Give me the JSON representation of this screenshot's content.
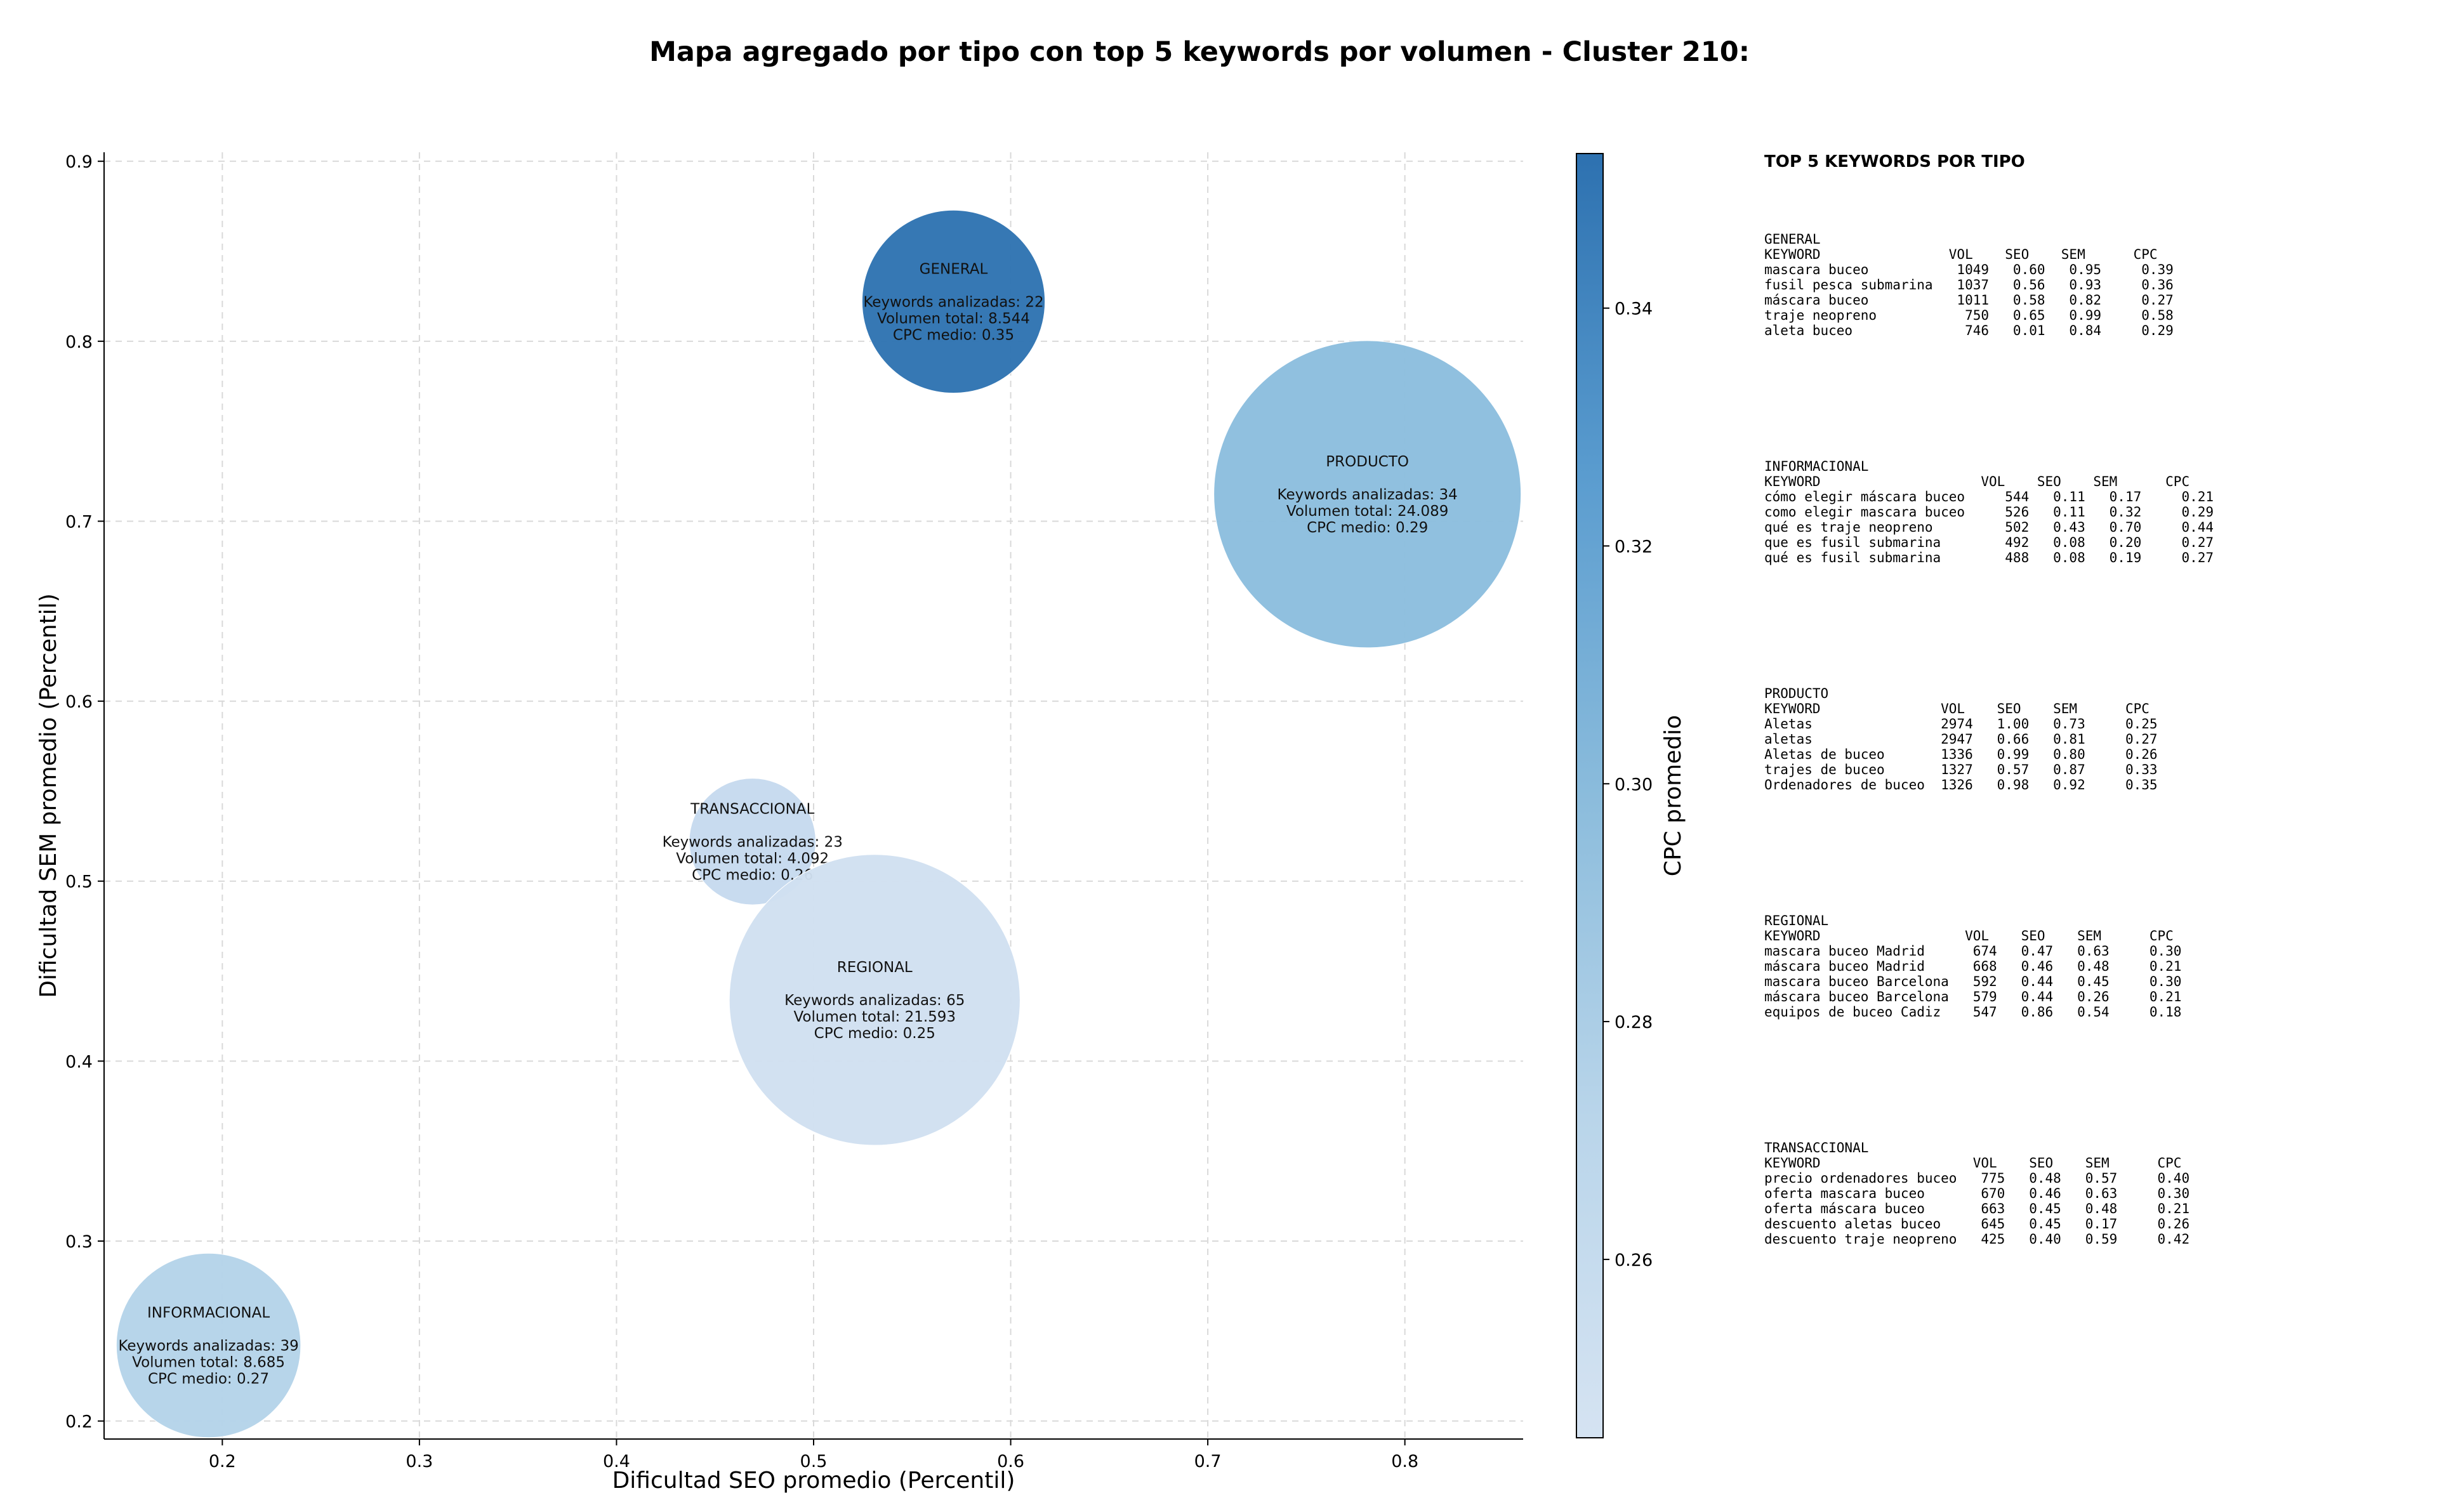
{
  "chart_data": {
    "type": "scatter",
    "subtype": "bubble",
    "title": "Mapa agregado por tipo con top 5 keywords por volumen - Cluster 210:",
    "xlabel": "Dificultad SEO promedio (Percentil)",
    "ylabel": "Dificultad SEM promedio (Percentil)",
    "xlim": [
      0.14,
      0.86
    ],
    "ylim": [
      0.19,
      0.905
    ],
    "xticks": [
      "0.2",
      "0.3",
      "0.4",
      "0.5",
      "0.6",
      "0.7",
      "0.8"
    ],
    "yticks": [
      "0.2",
      "0.3",
      "0.4",
      "0.5",
      "0.6",
      "0.7",
      "0.8",
      "0.9"
    ],
    "grid": true,
    "colorbar": {
      "label": "CPC promedio",
      "range": [
        0.245,
        0.353
      ],
      "ticks": [
        "0.26",
        "0.28",
        "0.30",
        "0.32",
        "0.34"
      ],
      "colormap": [
        "#d5e3f2",
        "#b9d5ea",
        "#8bbcdc",
        "#5a9ccf",
        "#2d71b0"
      ]
    },
    "bubbles": [
      {
        "tipo": "GENERAL",
        "x": 0.571,
        "y": 0.822,
        "size": 8544,
        "cpc": 0.35,
        "color": "#2e72b1",
        "lines": [
          "GENERAL",
          "",
          "Keywords analizadas: 22",
          "Volumen total: 8.544",
          "CPC medio: 0.35"
        ]
      },
      {
        "tipo": "PRODUCTO",
        "x": 0.781,
        "y": 0.715,
        "size": 24089,
        "cpc": 0.29,
        "color": "#8bbdde",
        "lines": [
          "PRODUCTO",
          "",
          "Keywords analizadas: 34",
          "Volumen total: 24.089",
          "CPC medio: 0.29"
        ]
      },
      {
        "tipo": "TRANSACCIONAL",
        "x": 0.469,
        "y": 0.522,
        "size": 4092,
        "cpc": 0.26,
        "color": "#c6daee",
        "lines": [
          "TRANSACCIONAL",
          "",
          "Keywords analizadas: 23",
          "Volumen total: 4.092",
          "CPC medio: 0.26"
        ]
      },
      {
        "tipo": "REGIONAL",
        "x": 0.531,
        "y": 0.434,
        "size": 21593,
        "cpc": 0.25,
        "color": "#d0e0f0",
        "lines": [
          "REGIONAL",
          "",
          "Keywords analizadas: 65",
          "Volumen total: 21.593",
          "CPC medio: 0.25"
        ]
      },
      {
        "tipo": "INFORMACIONAL",
        "x": 0.193,
        "y": 0.242,
        "size": 8685,
        "cpc": 0.27,
        "color": "#b4d3e9",
        "lines": [
          "INFORMACIONAL",
          "",
          "Keywords analizadas: 39",
          "Volumen total: 8.685",
          "CPC medio: 0.27"
        ]
      }
    ]
  },
  "keywords_panel": {
    "heading": "TOP 5 KEYWORDS POR TIPO",
    "blocks": [
      {
        "tipo": "GENERAL",
        "text": "GENERAL\nKEYWORD                VOL    SEO    SEM      CPC\nmascara buceo           1049   0.60   0.95     0.39\nfusil pesca submarina   1037   0.56   0.93     0.36\nmáscara buceo           1011   0.58   0.82     0.27\ntraje neopreno           750   0.65   0.99     0.58\naleta buceo              746   0.01   0.84     0.29"
      },
      {
        "tipo": "INFORMACIONAL",
        "text": "INFORMACIONAL\nKEYWORD                    VOL    SEO    SEM      CPC\ncómo elegir máscara buceo     544   0.11   0.17     0.21\ncomo elegir mascara buceo     526   0.11   0.32     0.29\nqué es traje neopreno         502   0.43   0.70     0.44\nque es fusil submarina        492   0.08   0.20     0.27\nqué es fusil submarina        488   0.08   0.19     0.27"
      },
      {
        "tipo": "PRODUCTO",
        "text": "PRODUCTO\nKEYWORD               VOL    SEO    SEM      CPC\nAletas                2974   1.00   0.73     0.25\naletas                2947   0.66   0.81     0.27\nAletas de buceo       1336   0.99   0.80     0.26\ntrajes de buceo       1327   0.57   0.87     0.33\nOrdenadores de buceo  1326   0.98   0.92     0.35"
      },
      {
        "tipo": "REGIONAL",
        "text": "REGIONAL\nKEYWORD                  VOL    SEO    SEM      CPC\nmascara buceo Madrid      674   0.47   0.63     0.30\nmáscara buceo Madrid      668   0.46   0.48     0.21\nmascara buceo Barcelona   592   0.44   0.45     0.30\nmáscara buceo Barcelona   579   0.44   0.26     0.21\nequipos de buceo Cadiz    547   0.86   0.54     0.18"
      },
      {
        "tipo": "TRANSACCIONAL",
        "text": "TRANSACCIONAL\nKEYWORD                   VOL    SEO    SEM      CPC\nprecio ordenadores buceo   775   0.48   0.57     0.40\noferta mascara buceo       670   0.46   0.63     0.30\noferta máscara buceo       663   0.45   0.48     0.21\ndescuento aletas buceo     645   0.45   0.17     0.26\ndescuento traje neopreno   425   0.40   0.59     0.42"
      }
    ]
  }
}
